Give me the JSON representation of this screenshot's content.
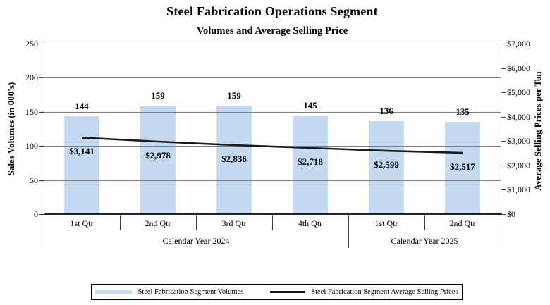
{
  "chart_data": {
    "type": "bar",
    "title": "Steel Fabrication  Operations Segment",
    "subtitle": "Volumes and Average Selling Price",
    "categories": [
      "1st Qtr",
      "2nd Qtr",
      "3rd Qtr",
      "4th Qtr",
      "1st Qtr",
      "2nd Qtr"
    ],
    "category_groups": [
      {
        "label": "Calendar Year 2024",
        "span": 4
      },
      {
        "label": "Calendar Year 2025",
        "span": 2
      }
    ],
    "series": [
      {
        "name": "Steel Fabrication Segment Volumes",
        "render": "bar",
        "axis": "left",
        "color": "#c5d9f1",
        "values": [
          144,
          159,
          159,
          145,
          136,
          135
        ],
        "labels": [
          "144",
          "159",
          "159",
          "145",
          "136",
          "135"
        ]
      },
      {
        "name": "Steel Fabrication Segment Average Selling Prices",
        "render": "line",
        "axis": "right",
        "color": "#1a1a1a",
        "values": [
          3141,
          2978,
          2836,
          2718,
          2599,
          2517
        ],
        "labels": [
          "$3,141",
          "$2,978",
          "$2,836",
          "$2,718",
          "$2,599",
          "$2,517"
        ]
      }
    ],
    "left_axis": {
      "title": "Sales Volumes (in 000's)",
      "min": 0,
      "max": 250,
      "step": 50,
      "tick_labels": [
        "0",
        "50",
        "100",
        "150",
        "200",
        "250"
      ]
    },
    "right_axis": {
      "title": "Average Selling Prices per Ton",
      "min": 0,
      "max": 7000,
      "step": 1000,
      "tick_labels": [
        "$0",
        "$1,000",
        "$2,000",
        "$3,000",
        "$4,000",
        "$5,000",
        "$6,000",
        "$7,000"
      ]
    },
    "grid": true,
    "legend_position": "bottom"
  }
}
